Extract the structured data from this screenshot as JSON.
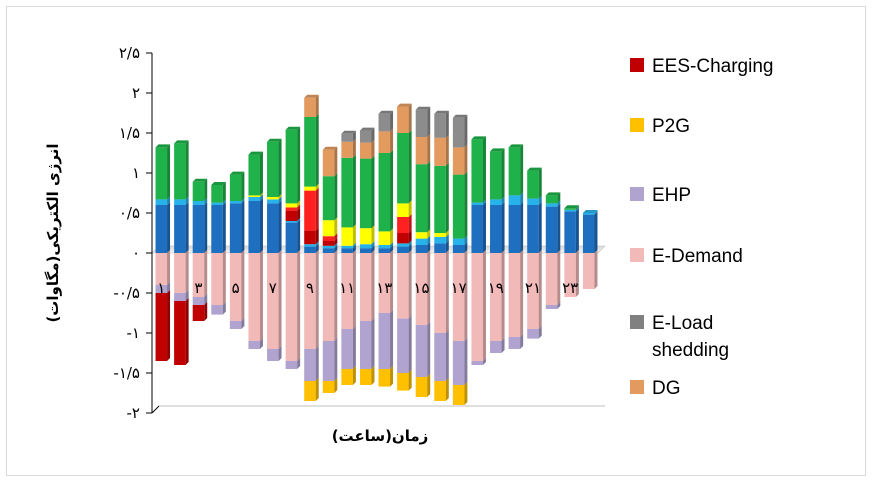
{
  "chart_data": {
    "type": "bar",
    "stacked": true,
    "xlabel": "زمان(ساعت)",
    "ylabel": "انرژی الکتریکی(مگاوات)",
    "ylim": [
      -2,
      2.5
    ],
    "y_ticks": [
      2.5,
      2,
      1.5,
      1,
      0.5,
      0,
      -0.5,
      -1,
      -1.5,
      -2
    ],
    "y_tick_labels": [
      "۲/۵",
      "۲",
      "۱/۵",
      "۱",
      "۰/۵",
      "۰",
      "-۰/۵",
      "-۱",
      "-۱/۵",
      "-۲"
    ],
    "x": [
      1,
      2,
      3,
      4,
      5,
      6,
      7,
      8,
      9,
      10,
      11,
      12,
      13,
      14,
      15,
      16,
      17,
      18,
      19,
      20,
      21,
      22,
      23,
      24
    ],
    "x_tick_labels": [
      "۱",
      "",
      "۳",
      "",
      "۵",
      "",
      "۷",
      "",
      "۹",
      "",
      "۱۱",
      "",
      "۱۳",
      "",
      "۱۵",
      "",
      "۱۷",
      "",
      "۱۹",
      "",
      "۲۱",
      "",
      "۲۳",
      ""
    ],
    "legend_position": "right",
    "series": [
      {
        "name": "",
        "color": "#1f6fc0",
        "values": [
          0.6,
          0.6,
          0.6,
          0.6,
          0.62,
          0.65,
          0.62,
          0.38,
          0.08,
          0.06,
          0.06,
          0.06,
          0.06,
          0.08,
          0.1,
          0.12,
          0.1,
          0.6,
          0.6,
          0.6,
          0.6,
          0.58,
          0.52,
          0.48
        ]
      },
      {
        "name": "",
        "color": "#27b3ea",
        "values": [
          0.07,
          0.07,
          0.05,
          0.03,
          0.03,
          0.05,
          0.05,
          0.02,
          0.03,
          0.03,
          0.03,
          0.05,
          0.04,
          0.04,
          0.08,
          0.08,
          0.08,
          0.03,
          0.07,
          0.12,
          0.08,
          0.04,
          0.02,
          0.02
        ]
      },
      {
        "name": "EES-Charging",
        "color": "#c00000",
        "values": [
          0,
          0,
          0,
          0,
          0,
          0,
          0,
          0.13,
          0.17,
          0.06,
          0,
          0,
          0,
          0.13,
          0,
          0,
          0,
          0,
          0,
          0,
          0,
          0,
          0,
          0
        ]
      },
      {
        "name": "",
        "color": "#ff2020",
        "values": [
          0,
          0,
          0,
          0,
          0,
          0,
          0,
          0.04,
          0.5,
          0.06,
          0,
          0,
          0,
          0.2,
          0,
          0,
          0,
          0,
          0,
          0,
          0,
          0,
          0,
          0
        ]
      },
      {
        "name": "P2G",
        "color": "#ffc000",
        "values": [
          0,
          0,
          0,
          0,
          0,
          0,
          0,
          0,
          0,
          0,
          0,
          0,
          0,
          0,
          0,
          0,
          0,
          0,
          0,
          0,
          0,
          0,
          0,
          0
        ]
      },
      {
        "name": "",
        "color": "#ffff00",
        "values": [
          0,
          0,
          0,
          0,
          0,
          0.02,
          0.03,
          0.05,
          0.05,
          0.2,
          0.23,
          0.2,
          0.17,
          0.17,
          0.08,
          0.05,
          0,
          0,
          0,
          0,
          0,
          0,
          0,
          0
        ]
      },
      {
        "name": "",
        "color": "#1fb14a",
        "values": [
          0.65,
          0.7,
          0.24,
          0.22,
          0.33,
          0.51,
          0.69,
          0.92,
          0.87,
          0.55,
          0.87,
          0.87,
          0.98,
          0.88,
          0.85,
          0.84,
          0.8,
          0.79,
          0.6,
          0.6,
          0.35,
          0.1,
          0.02,
          0
        ]
      },
      {
        "name": "DG",
        "color": "#e39a5f",
        "values": [
          0,
          0,
          0,
          0,
          0,
          0,
          0,
          0,
          0.24,
          0.33,
          0.2,
          0.2,
          0.27,
          0.33,
          0.34,
          0.35,
          0.34,
          0,
          0,
          0,
          0,
          0,
          0,
          0
        ]
      },
      {
        "name": "E-Load shedding",
        "color": "#8c8c8c",
        "values": [
          0,
          0,
          0,
          0,
          0,
          0,
          0,
          0,
          0,
          0,
          0.1,
          0.15,
          0.22,
          0,
          0.34,
          0.3,
          0.37,
          0,
          0,
          0,
          0,
          0,
          0,
          0
        ]
      },
      {
        "name": "E-Demand",
        "color": "#f2b9b9",
        "values": [
          -0.4,
          -0.5,
          -0.55,
          -0.65,
          -0.85,
          -1.1,
          -1.2,
          -1.35,
          -1.2,
          -1.1,
          -0.95,
          -0.85,
          -0.75,
          -0.82,
          -0.9,
          -1.0,
          -1.1,
          -1.35,
          -1.1,
          -1.05,
          -0.95,
          -0.65,
          -0.55,
          -0.45
        ]
      },
      {
        "name": "EHP",
        "color": "#b0a3d0",
        "values": [
          -0.1,
          -0.1,
          -0.1,
          -0.12,
          -0.1,
          -0.1,
          -0.15,
          -0.1,
          -0.4,
          -0.5,
          -0.5,
          -0.6,
          -0.7,
          -0.68,
          -0.65,
          -0.6,
          -0.55,
          -0.05,
          -0.15,
          -0.15,
          -0.12,
          -0.05,
          0,
          0
        ]
      },
      {
        "name": "",
        "color": "#ffc000",
        "values": [
          0,
          0,
          0,
          0,
          0,
          0,
          0,
          0,
          -0.25,
          -0.15,
          -0.2,
          -0.2,
          -0.22,
          -0.22,
          -0.25,
          -0.25,
          -0.25,
          0,
          0,
          0,
          0,
          0,
          0,
          0
        ]
      },
      {
        "name": "",
        "color": "#c00000",
        "values": [
          -0.85,
          -0.8,
          -0.2,
          0,
          0,
          0,
          0,
          0,
          0,
          0,
          0,
          0,
          0,
          0,
          0,
          0,
          0,
          0,
          0,
          0,
          0,
          0,
          0,
          0
        ]
      }
    ],
    "legend": [
      {
        "label": "EES-Charging",
        "color": "#c00000"
      },
      {
        "label": "P2G",
        "color": "#ffc000"
      },
      {
        "label": "EHP",
        "color": "#b0a3d0"
      },
      {
        "label": "E-Demand",
        "color": "#f2b9b9"
      },
      {
        "label": "E-Load shedding",
        "color": "#808080"
      },
      {
        "label": "DG",
        "color": "#e39a5f"
      }
    ]
  }
}
